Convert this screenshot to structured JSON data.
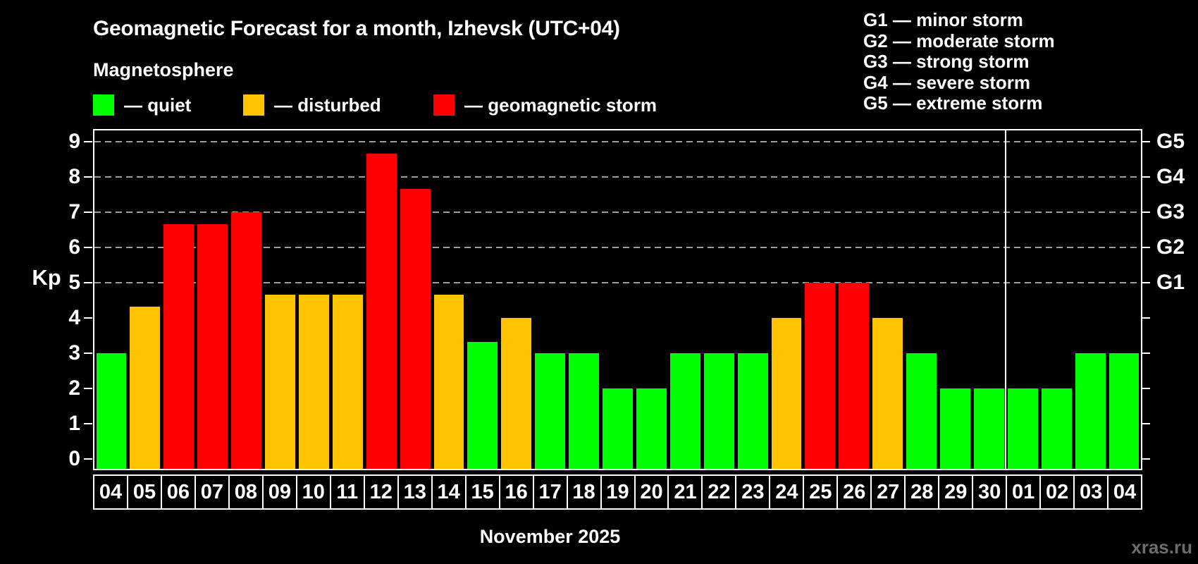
{
  "title": "Geomagnetic Forecast for a month, Izhevsk (UTC+04)",
  "subtitle": "Magnetosphere",
  "watermark": "xras.ru",
  "legend": {
    "items": [
      {
        "name": "quiet",
        "label": "— quiet",
        "color": "#00ff00"
      },
      {
        "name": "disturbed",
        "label": "— disturbed",
        "color": "#ffc300"
      },
      {
        "name": "storm",
        "label": "— geomagnetic storm",
        "color": "#ff0000"
      }
    ]
  },
  "g_legend": {
    "lines": [
      "G1 — minor storm",
      "G2 — moderate storm",
      "G3 — strong storm",
      "G4 — severe storm",
      "G5 — extreme storm"
    ]
  },
  "chart_data": {
    "type": "bar",
    "title": "Geomagnetic Forecast for a month, Izhevsk (UTC+04)",
    "subtitle": "Magnetosphere",
    "xlabel": "November 2025",
    "ylabel": "Kp",
    "categories": [
      "04",
      "05",
      "06",
      "07",
      "08",
      "09",
      "10",
      "11",
      "12",
      "13",
      "14",
      "15",
      "16",
      "17",
      "18",
      "19",
      "20",
      "21",
      "22",
      "23",
      "24",
      "25",
      "26",
      "27",
      "28",
      "29",
      "30",
      "01",
      "02",
      "03",
      "04"
    ],
    "values": [
      3,
      4.33,
      6.67,
      6.67,
      7,
      4.67,
      4.67,
      4.67,
      8.67,
      7.67,
      4.67,
      3.33,
      4,
      3,
      3,
      2,
      2,
      3,
      3,
      3,
      4,
      5,
      5,
      4,
      3,
      2,
      2,
      2,
      2,
      3,
      3
    ],
    "statuses": [
      "quiet",
      "disturbed",
      "storm",
      "storm",
      "storm",
      "disturbed",
      "disturbed",
      "disturbed",
      "storm",
      "storm",
      "disturbed",
      "quiet",
      "disturbed",
      "quiet",
      "quiet",
      "quiet",
      "quiet",
      "quiet",
      "quiet",
      "quiet",
      "disturbed",
      "storm",
      "storm",
      "disturbed",
      "quiet",
      "quiet",
      "quiet",
      "quiet",
      "quiet",
      "quiet",
      "quiet"
    ],
    "status_colors": {
      "quiet": "#00ff00",
      "disturbed": "#ffc300",
      "storm": "#ff0000"
    },
    "y_ticks": [
      0,
      1,
      2,
      3,
      4,
      5,
      6,
      7,
      8,
      9
    ],
    "ylim": [
      -0.28,
      9.32
    ],
    "gridlines_at": [
      5,
      6,
      7,
      8,
      9
    ],
    "right_axis_labels": [
      {
        "kp": 5,
        "label": "G1"
      },
      {
        "kp": 6,
        "label": "G2"
      },
      {
        "kp": 7,
        "label": "G3"
      },
      {
        "kp": 8,
        "label": "G4"
      },
      {
        "kp": 9,
        "label": "G5"
      }
    ],
    "month_divider_after_index": 26,
    "grid": "dashed horizontal lines at Kp 5–9",
    "legend_position": "top-left"
  }
}
